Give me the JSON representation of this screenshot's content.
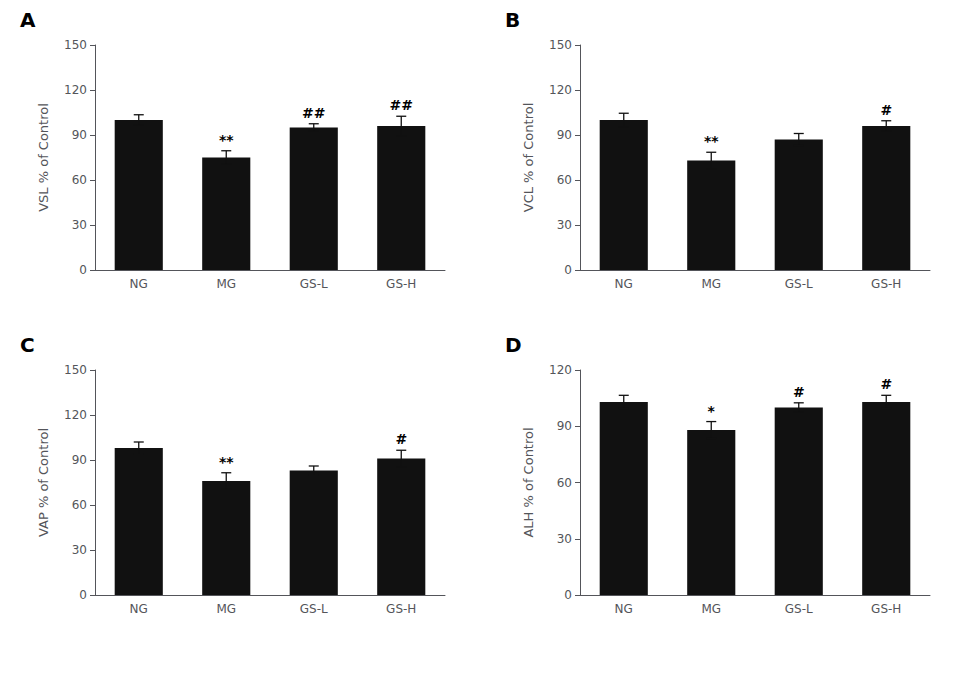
{
  "chart_data": [
    {
      "type": "bar",
      "title": "A",
      "ylabel": "VSL % of Control",
      "categories": [
        "NG",
        "MG",
        "GS-L",
        "GS-H"
      ],
      "values": [
        100,
        75,
        95,
        96
      ],
      "errors": [
        3.5,
        4.5,
        2.5,
        6.5
      ],
      "annotations": [
        null,
        "**",
        "##",
        "##"
      ],
      "color": "#111111",
      "ylim": [
        0,
        150
      ],
      "yticks": [
        0,
        30,
        60,
        90,
        120,
        150
      ],
      "grid": false
    },
    {
      "type": "bar",
      "title": "B",
      "ylabel": "VCL % of Control",
      "categories": [
        "NG",
        "MG",
        "GS-L",
        "GS-H"
      ],
      "values": [
        100,
        73,
        87,
        96
      ],
      "errors": [
        4.5,
        5.5,
        4.0,
        3.5
      ],
      "annotations": [
        null,
        "**",
        null,
        "#"
      ],
      "color": "#111111",
      "ylim": [
        0,
        150
      ],
      "yticks": [
        0,
        30,
        60,
        90,
        120,
        150
      ],
      "grid": false
    },
    {
      "type": "bar",
      "title": "C",
      "ylabel": "VAP % of Control",
      "categories": [
        "NG",
        "MG",
        "GS-L",
        "GS-H"
      ],
      "values": [
        98,
        76,
        83,
        91
      ],
      "errors": [
        4.0,
        5.5,
        3.0,
        5.5
      ],
      "annotations": [
        null,
        "**",
        null,
        "#"
      ],
      "color": "#111111",
      "ylim": [
        0,
        150
      ],
      "yticks": [
        0,
        30,
        60,
        90,
        120,
        150
      ],
      "grid": false
    },
    {
      "type": "bar",
      "title": "D",
      "ylabel": "ALH % of Control",
      "categories": [
        "NG",
        "MG",
        "GS-L",
        "GS-H"
      ],
      "values": [
        103,
        88,
        100,
        103
      ],
      "errors": [
        3.5,
        4.5,
        2.5,
        3.5
      ],
      "annotations": [
        null,
        "*",
        "#",
        "#"
      ],
      "color": "#111111",
      "ylim": [
        0,
        120
      ],
      "yticks": [
        0,
        30,
        60,
        90,
        120
      ],
      "grid": false
    }
  ]
}
